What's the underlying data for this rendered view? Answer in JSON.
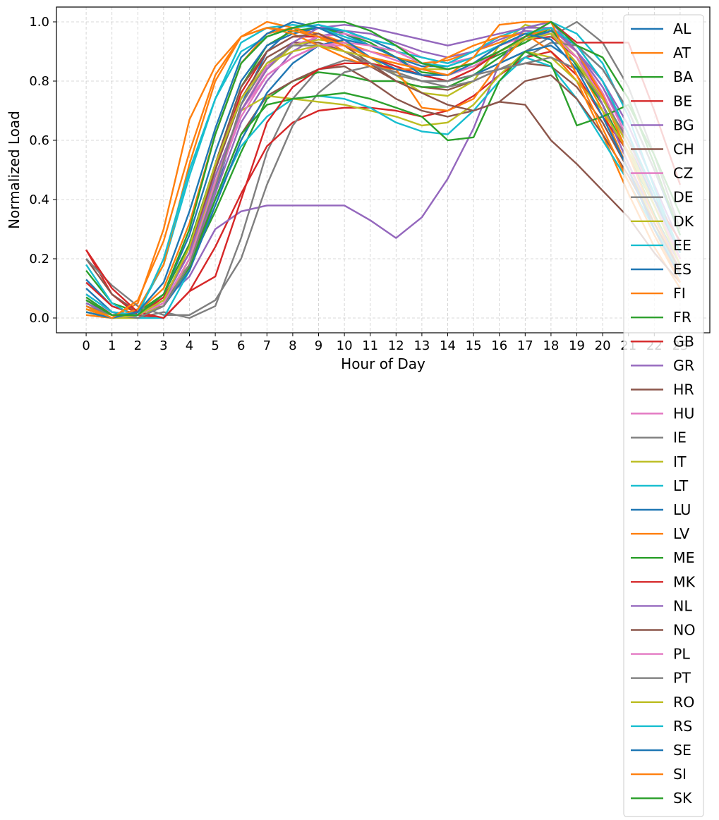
{
  "chart_data": {
    "type": "line",
    "title": "",
    "xlabel": "Hour of Day",
    "ylabel": "Normalized Load",
    "xlim": [
      -1.15,
      24.15
    ],
    "ylim": [
      -0.05,
      1.05
    ],
    "x": [
      0,
      1,
      2,
      3,
      4,
      5,
      6,
      7,
      8,
      9,
      10,
      11,
      12,
      13,
      14,
      15,
      16,
      17,
      18,
      19,
      20,
      21,
      22,
      23
    ],
    "x_ticks": [
      0,
      1,
      2,
      3,
      4,
      5,
      6,
      7,
      8,
      9,
      10,
      11,
      12,
      13,
      14,
      15,
      16,
      17,
      18,
      19,
      20,
      21,
      22,
      23
    ],
    "y_ticks": [
      0.0,
      0.2,
      0.4,
      0.6,
      0.8,
      1.0
    ],
    "y_tick_labels": [
      "0.0",
      "0.2",
      "0.4",
      "0.6",
      "0.8",
      "1.0"
    ],
    "grid": true,
    "legend_position": "upper right",
    "series": [
      {
        "name": "AL",
        "color": "#1f77b4",
        "values": [
          0.13,
          0.04,
          0.01,
          0.06,
          0.18,
          0.42,
          0.72,
          0.9,
          0.98,
          0.99,
          0.96,
          0.92,
          0.88,
          0.85,
          0.85,
          0.88,
          0.92,
          0.96,
          0.98,
          0.92,
          0.8,
          0.62,
          0.4,
          0.2
        ]
      },
      {
        "name": "AT",
        "color": "#ff7f0e",
        "values": [
          0.02,
          0.0,
          0.02,
          0.1,
          0.32,
          0.62,
          0.86,
          0.96,
          0.98,
          0.96,
          0.93,
          0.9,
          0.88,
          0.86,
          0.87,
          0.9,
          0.93,
          0.97,
          0.96,
          0.86,
          0.7,
          0.5,
          0.3,
          0.12
        ]
      },
      {
        "name": "BA",
        "color": "#2ca02c",
        "values": [
          0.16,
          0.05,
          0.02,
          0.08,
          0.25,
          0.52,
          0.78,
          0.92,
          0.97,
          0.98,
          0.96,
          0.93,
          0.88,
          0.83,
          0.82,
          0.85,
          0.89,
          0.93,
          0.98,
          0.9,
          0.75,
          0.55,
          0.35,
          0.18
        ]
      },
      {
        "name": "BE",
        "color": "#d62728",
        "values": [
          0.12,
          0.04,
          0.01,
          0.07,
          0.22,
          0.5,
          0.76,
          0.9,
          0.95,
          0.95,
          0.93,
          0.88,
          0.85,
          0.82,
          0.8,
          0.84,
          0.9,
          0.94,
          0.95,
          0.88,
          0.75,
          0.58,
          0.38,
          0.2
        ]
      },
      {
        "name": "BG",
        "color": "#9467bd",
        "values": [
          0.08,
          0.02,
          0.0,
          0.04,
          0.18,
          0.42,
          0.66,
          0.8,
          0.9,
          0.95,
          0.97,
          0.96,
          0.93,
          0.9,
          0.88,
          0.9,
          0.94,
          0.97,
          0.96,
          0.9,
          0.8,
          0.65,
          0.45,
          0.25
        ]
      },
      {
        "name": "CH",
        "color": "#8c564b",
        "values": [
          0.05,
          0.01,
          0.01,
          0.06,
          0.24,
          0.5,
          0.74,
          0.88,
          0.93,
          0.93,
          0.9,
          0.85,
          0.8,
          0.78,
          0.77,
          0.8,
          0.84,
          0.86,
          0.85,
          0.78,
          0.66,
          0.5,
          0.32,
          0.15
        ]
      },
      {
        "name": "CZ",
        "color": "#e377c2",
        "values": [
          0.06,
          0.02,
          0.01,
          0.05,
          0.2,
          0.46,
          0.7,
          0.85,
          0.92,
          0.95,
          0.96,
          0.94,
          0.92,
          0.88,
          0.86,
          0.88,
          0.92,
          0.95,
          0.96,
          0.9,
          0.78,
          0.6,
          0.4,
          0.2
        ]
      },
      {
        "name": "DE",
        "color": "#7f7f7f",
        "values": [
          0.05,
          0.01,
          0.0,
          0.02,
          0.0,
          0.04,
          0.27,
          0.56,
          0.74,
          0.84,
          0.87,
          0.86,
          0.83,
          0.8,
          0.8,
          0.82,
          0.86,
          0.9,
          0.95,
          1.0,
          0.93,
          0.78,
          0.55,
          0.3
        ]
      },
      {
        "name": "DK",
        "color": "#bcbd22",
        "values": [
          0.03,
          0.0,
          0.0,
          0.04,
          0.2,
          0.45,
          0.7,
          0.84,
          0.92,
          0.94,
          0.93,
          0.88,
          0.82,
          0.76,
          0.75,
          0.8,
          0.92,
          0.99,
          0.97,
          0.88,
          0.72,
          0.52,
          0.32,
          0.14
        ]
      },
      {
        "name": "EE",
        "color": "#17becf",
        "values": [
          0.05,
          0.01,
          0.02,
          0.18,
          0.48,
          0.74,
          0.93,
          0.98,
          0.99,
          0.98,
          0.95,
          0.92,
          0.9,
          0.88,
          0.86,
          0.9,
          0.95,
          0.98,
          1.0,
          0.96,
          0.86,
          0.68,
          0.44,
          0.22
        ]
      },
      {
        "name": "ES",
        "color": "#1f77b4",
        "values": [
          0.04,
          0.01,
          0.01,
          0.08,
          0.28,
          0.56,
          0.8,
          0.92,
          0.96,
          0.98,
          0.97,
          0.94,
          0.9,
          0.86,
          0.84,
          0.86,
          0.9,
          0.94,
          0.97,
          0.92,
          0.84,
          0.7,
          0.5,
          0.28
        ]
      },
      {
        "name": "FI",
        "color": "#ff7f0e",
        "values": [
          0.01,
          0.0,
          0.05,
          0.3,
          0.67,
          0.85,
          0.95,
          1.0,
          0.98,
          0.95,
          0.9,
          0.86,
          0.84,
          0.84,
          0.88,
          0.92,
          0.95,
          0.96,
          0.9,
          0.8,
          0.62,
          0.42,
          0.24,
          0.1
        ]
      },
      {
        "name": "FR",
        "color": "#2ca02c",
        "values": [
          0.02,
          0.0,
          0.01,
          0.06,
          0.18,
          0.36,
          0.56,
          0.74,
          0.8,
          0.83,
          0.82,
          0.8,
          0.8,
          0.78,
          0.78,
          0.82,
          0.88,
          0.94,
          0.98,
          0.85,
          0.72,
          0.55,
          0.38,
          0.2
        ]
      },
      {
        "name": "GB",
        "color": "#d62728",
        "values": [
          0.23,
          0.08,
          0.01,
          0.0,
          0.09,
          0.24,
          0.42,
          0.58,
          0.66,
          0.7,
          0.71,
          0.71,
          0.7,
          0.68,
          0.7,
          0.75,
          0.82,
          0.88,
          0.9,
          0.82,
          0.68,
          0.56,
          0.4,
          0.26
        ]
      },
      {
        "name": "GR",
        "color": "#9467bd",
        "values": [
          0.04,
          0.0,
          0.01,
          0.06,
          0.14,
          0.3,
          0.36,
          0.38,
          0.38,
          0.38,
          0.38,
          0.33,
          0.27,
          0.34,
          0.47,
          0.64,
          0.86,
          0.98,
          1.0,
          0.9,
          0.72,
          0.52,
          0.34,
          0.18
        ]
      },
      {
        "name": "HR",
        "color": "#8c564b",
        "values": [
          0.2,
          0.08,
          0.02,
          0.04,
          0.18,
          0.4,
          0.62,
          0.75,
          0.8,
          0.84,
          0.85,
          0.8,
          0.74,
          0.7,
          0.68,
          0.7,
          0.73,
          0.72,
          0.6,
          0.52,
          0.43,
          0.34,
          0.22,
          0.12
        ]
      },
      {
        "name": "HU",
        "color": "#e377c2",
        "values": [
          0.06,
          0.02,
          0.01,
          0.05,
          0.18,
          0.44,
          0.7,
          0.82,
          0.88,
          0.92,
          0.92,
          0.9,
          0.87,
          0.84,
          0.82,
          0.85,
          0.9,
          0.95,
          0.98,
          0.9,
          0.76,
          0.58,
          0.38,
          0.2
        ]
      },
      {
        "name": "IE",
        "color": "#7f7f7f",
        "values": [
          0.2,
          0.11,
          0.04,
          0.01,
          0.01,
          0.06,
          0.2,
          0.45,
          0.65,
          0.76,
          0.83,
          0.85,
          0.83,
          0.8,
          0.78,
          0.8,
          0.84,
          0.88,
          0.93,
          0.92,
          0.84,
          0.7,
          0.5,
          0.3
        ]
      },
      {
        "name": "IT",
        "color": "#bcbd22",
        "values": [
          0.03,
          0.01,
          0.01,
          0.04,
          0.2,
          0.48,
          0.7,
          0.75,
          0.74,
          0.73,
          0.72,
          0.7,
          0.68,
          0.65,
          0.66,
          0.72,
          0.82,
          0.9,
          0.88,
          0.8,
          0.7,
          0.56,
          0.38,
          0.2
        ]
      },
      {
        "name": "LT",
        "color": "#17becf",
        "values": [
          0.18,
          0.05,
          0.0,
          0.0,
          0.16,
          0.4,
          0.58,
          0.68,
          0.74,
          0.75,
          0.74,
          0.71,
          0.66,
          0.63,
          0.62,
          0.7,
          0.8,
          0.88,
          0.85,
          0.74,
          0.6,
          0.46,
          0.3,
          0.16
        ]
      },
      {
        "name": "LU",
        "color": "#1f77b4",
        "values": [
          0.1,
          0.02,
          0.0,
          0.04,
          0.16,
          0.38,
          0.6,
          0.76,
          0.86,
          0.92,
          0.94,
          0.92,
          0.88,
          0.82,
          0.8,
          0.82,
          0.86,
          0.9,
          0.92,
          0.86,
          0.74,
          0.58,
          0.4,
          0.22
        ]
      },
      {
        "name": "LV",
        "color": "#ff7f0e",
        "values": [
          0.03,
          0.0,
          0.03,
          0.18,
          0.52,
          0.8,
          0.95,
          0.98,
          0.96,
          0.92,
          0.88,
          0.85,
          0.84,
          0.71,
          0.7,
          0.74,
          0.86,
          0.95,
          0.98,
          0.9,
          0.75,
          0.55,
          0.34,
          0.16
        ]
      },
      {
        "name": "ME",
        "color": "#2ca02c",
        "values": [
          0.07,
          0.01,
          0.01,
          0.05,
          0.17,
          0.4,
          0.62,
          0.72,
          0.74,
          0.75,
          0.76,
          0.74,
          0.71,
          0.68,
          0.6,
          0.61,
          0.8,
          0.9,
          0.86,
          0.65,
          0.68,
          0.72,
          0.55,
          0.35
        ]
      },
      {
        "name": "MK",
        "color": "#d62728",
        "values": [
          0.23,
          0.1,
          0.02,
          0.0,
          0.09,
          0.14,
          0.4,
          0.66,
          0.78,
          0.84,
          0.86,
          0.86,
          0.84,
          0.82,
          0.8,
          0.84,
          0.9,
          0.95,
          1.0,
          0.93,
          0.93,
          0.93,
          0.7,
          0.45
        ]
      },
      {
        "name": "NL",
        "color": "#9467bd",
        "values": [
          0.05,
          0.01,
          0.01,
          0.06,
          0.22,
          0.48,
          0.7,
          0.84,
          0.93,
          0.98,
          0.99,
          0.98,
          0.96,
          0.94,
          0.92,
          0.94,
          0.96,
          0.98,
          0.98,
          0.9,
          0.78,
          0.62,
          0.42,
          0.22
        ]
      },
      {
        "name": "NO",
        "color": "#8c564b",
        "values": [
          0.06,
          0.01,
          0.01,
          0.06,
          0.24,
          0.52,
          0.78,
          0.9,
          0.95,
          0.96,
          0.92,
          0.86,
          0.8,
          0.76,
          0.72,
          0.7,
          0.73,
          0.8,
          0.82,
          0.74,
          0.62,
          0.48,
          0.32,
          0.16
        ]
      },
      {
        "name": "PL",
        "color": "#e377c2",
        "values": [
          0.08,
          0.02,
          0.01,
          0.05,
          0.2,
          0.45,
          0.68,
          0.82,
          0.88,
          0.92,
          0.93,
          0.92,
          0.9,
          0.86,
          0.84,
          0.86,
          0.9,
          0.94,
          0.96,
          0.88,
          0.74,
          0.58,
          0.38,
          0.2
        ]
      },
      {
        "name": "PT",
        "color": "#7f7f7f",
        "values": [
          0.04,
          0.01,
          0.0,
          0.04,
          0.18,
          0.44,
          0.72,
          0.86,
          0.92,
          0.92,
          0.9,
          0.86,
          0.82,
          0.8,
          0.8,
          0.82,
          0.84,
          0.86,
          0.88,
          0.84,
          0.74,
          0.6,
          0.42,
          0.22
        ]
      },
      {
        "name": "RO",
        "color": "#bcbd22",
        "values": [
          0.02,
          0.0,
          0.01,
          0.06,
          0.24,
          0.52,
          0.74,
          0.86,
          0.9,
          0.92,
          0.9,
          0.88,
          0.86,
          0.84,
          0.84,
          0.86,
          0.9,
          0.94,
          0.96,
          0.86,
          0.74,
          0.58,
          0.38,
          0.18
        ]
      },
      {
        "name": "RS",
        "color": "#17becf",
        "values": [
          0.08,
          0.02,
          0.01,
          0.2,
          0.5,
          0.74,
          0.9,
          0.95,
          0.98,
          0.99,
          0.97,
          0.94,
          0.92,
          0.86,
          0.85,
          0.88,
          0.92,
          0.96,
          0.98,
          0.92,
          0.8,
          0.62,
          0.42,
          0.22
        ]
      },
      {
        "name": "SE",
        "color": "#1f77b4",
        "values": [
          0.02,
          0.0,
          0.02,
          0.12,
          0.36,
          0.64,
          0.88,
          0.96,
          1.0,
          0.98,
          0.94,
          0.88,
          0.84,
          0.82,
          0.82,
          0.86,
          0.92,
          0.96,
          0.94,
          0.84,
          0.68,
          0.5,
          0.3,
          0.14
        ]
      },
      {
        "name": "SI",
        "color": "#ff7f0e",
        "values": [
          0.04,
          0.0,
          0.06,
          0.26,
          0.56,
          0.82,
          0.95,
          0.98,
          0.97,
          0.95,
          0.92,
          0.88,
          0.86,
          0.84,
          0.82,
          0.88,
          0.99,
          1.0,
          1.0,
          0.82,
          0.64,
          0.46,
          0.28,
          0.12
        ]
      },
      {
        "name": "SK",
        "color": "#2ca02c",
        "values": [
          0.06,
          0.01,
          0.01,
          0.08,
          0.3,
          0.62,
          0.86,
          0.95,
          0.98,
          1.0,
          1.0,
          0.97,
          0.92,
          0.86,
          0.84,
          0.86,
          0.9,
          0.95,
          1.0,
          0.92,
          0.88,
          0.74,
          0.52,
          0.28
        ]
      }
    ]
  }
}
